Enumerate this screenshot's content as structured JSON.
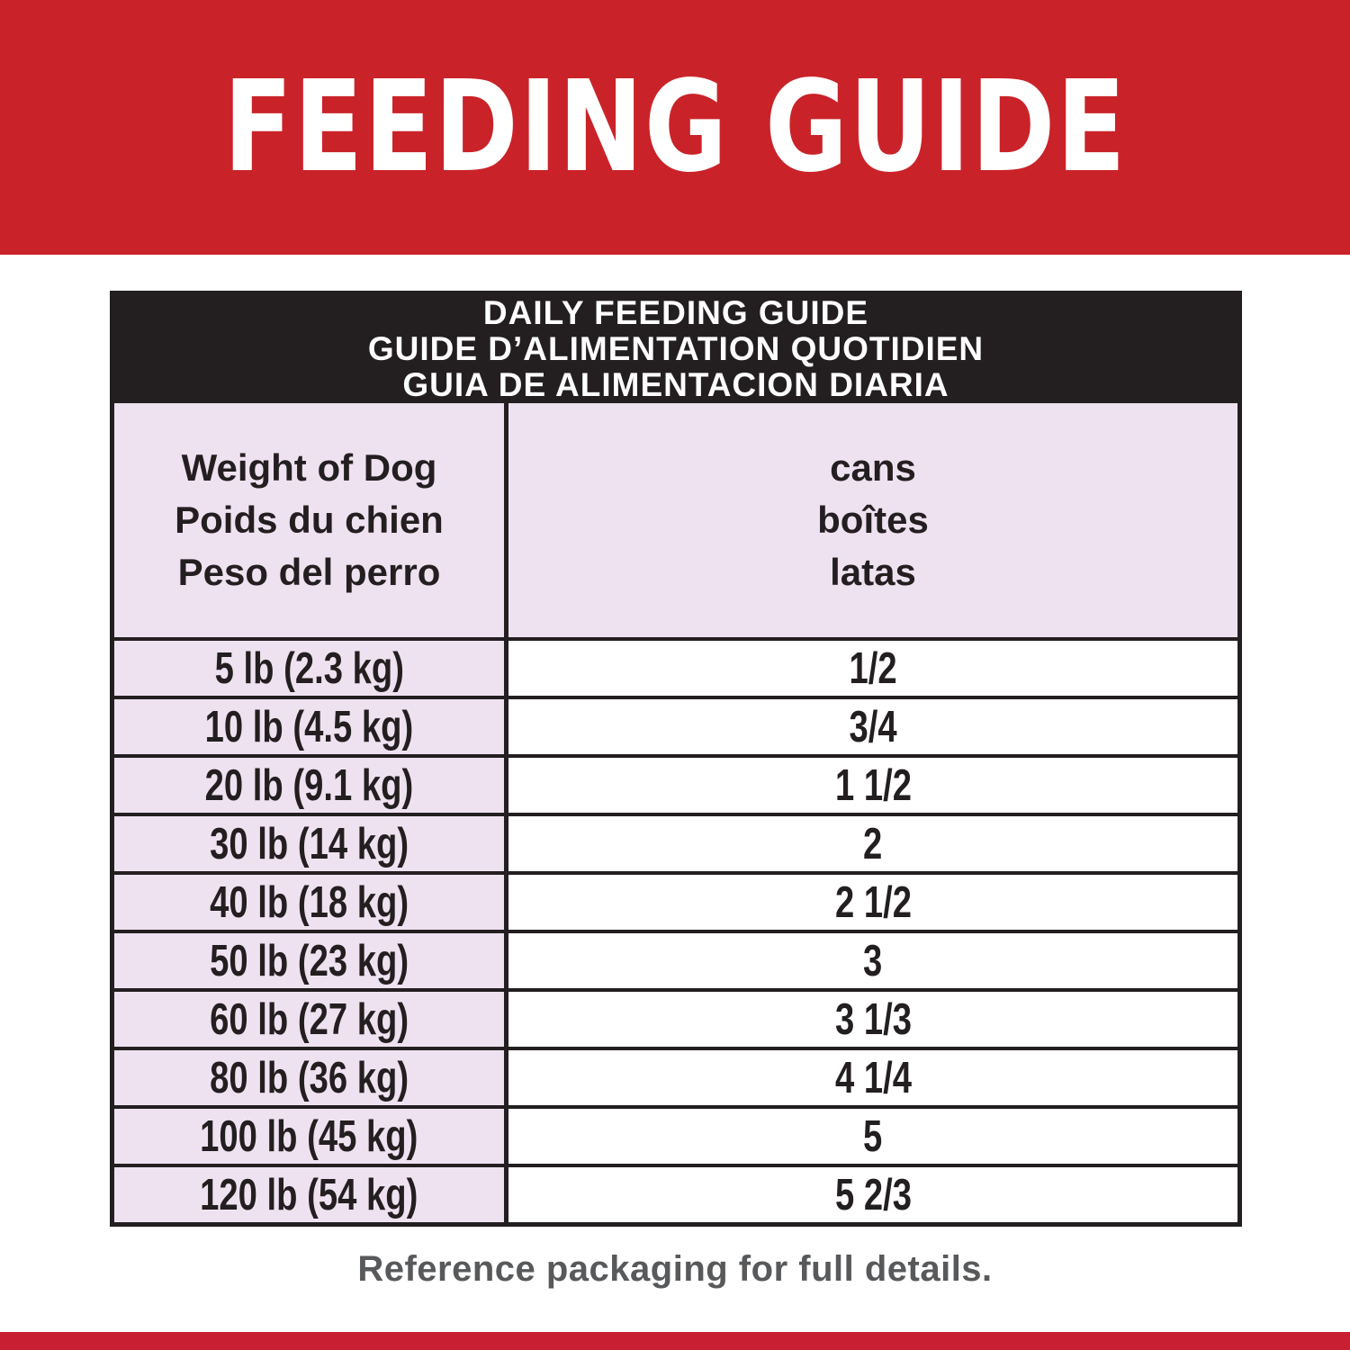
{
  "banner": {
    "title": "FEEDING GUIDE"
  },
  "table": {
    "header": {
      "en": "DAILY FEEDING GUIDE",
      "fr": "GUIDE D’ALIMENTATION QUOTIDIEN",
      "es": "GUIA DE ALIMENTACION DIARIA"
    },
    "columns": {
      "weight": {
        "en": "Weight of Dog",
        "fr": "Poids du chien",
        "es": "Peso del perro"
      },
      "cans": {
        "en": "cans",
        "fr": "boîtes",
        "es": "latas"
      }
    },
    "rows": [
      {
        "weight": "5 lb (2.3 kg)",
        "cans": "1/2"
      },
      {
        "weight": "10 lb (4.5 kg)",
        "cans": "3/4"
      },
      {
        "weight": "20 lb (9.1 kg)",
        "cans": "1 1/2"
      },
      {
        "weight": "30 lb (14 kg)",
        "cans": "2"
      },
      {
        "weight": "40 lb (18 kg)",
        "cans": "2 1/2"
      },
      {
        "weight": "50 lb (23 kg)",
        "cans": "3"
      },
      {
        "weight": "60 lb (27 kg)",
        "cans": "3 1/3"
      },
      {
        "weight": "80 lb (36 kg)",
        "cans": "4 1/4"
      },
      {
        "weight": "100 lb (45 kg)",
        "cans": "5"
      },
      {
        "weight": "120 lb (54 kg)",
        "cans": "5 2/3"
      }
    ]
  },
  "footer": {
    "note": "Reference packaging for full details."
  },
  "colors": {
    "banner_red": "#C92329",
    "strip_red": "#C91F33",
    "header_black": "#231F20",
    "cell_pink": "#EFE2F0",
    "note_gray": "#58595B",
    "text_white": "#FFFFFF"
  }
}
